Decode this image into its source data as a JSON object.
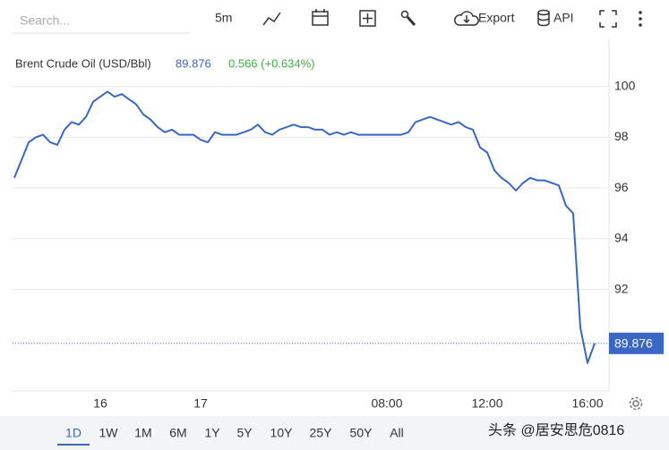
{
  "toolbar": {
    "search_placeholder": "Search...",
    "interval": "5m",
    "export": "Export",
    "api": "API"
  },
  "range_buttons": [
    "1D",
    "1W",
    "1M",
    "6M",
    "1Y",
    "5Y",
    "10Y",
    "25Y",
    "50Y",
    "All"
  ],
  "active_range_index": 0,
  "watermark": "头条 @居安思危0816",
  "chart_data": {
    "type": "line",
    "title": "Brent Crude Oil (USD/Bbl)",
    "last_price": 89.876,
    "change": "0.566 (+0.634%)",
    "categories": [
      null,
      null,
      null,
      null,
      null,
      null,
      null,
      null,
      null,
      null,
      null,
      null,
      "16",
      null,
      null,
      null,
      null,
      null,
      null,
      null,
      null,
      null,
      null,
      null,
      null,
      null,
      "17",
      null,
      null,
      null,
      null,
      null,
      null,
      null,
      null,
      null,
      null,
      null,
      null,
      null,
      null,
      null,
      null,
      null,
      null,
      null,
      null,
      null,
      null,
      null,
      null,
      null,
      "08:00",
      null,
      null,
      null,
      null,
      null,
      null,
      null,
      null,
      null,
      null,
      null,
      null,
      null,
      "12:00",
      null,
      null,
      null,
      null,
      null,
      null,
      null,
      null,
      null,
      null,
      null,
      null,
      null,
      "16:00",
      null
    ],
    "series": [
      {
        "name": "Brent Crude Oil",
        "color": "#3a67c4",
        "values": [
          96.4,
          97.1,
          97.8,
          98.0,
          98.1,
          97.8,
          97.7,
          98.3,
          98.6,
          98.5,
          98.8,
          99.4,
          99.6,
          99.8,
          99.6,
          99.7,
          99.5,
          99.3,
          98.9,
          98.7,
          98.4,
          98.2,
          98.3,
          98.1,
          98.1,
          98.1,
          97.9,
          97.8,
          98.2,
          98.1,
          98.1,
          98.1,
          98.2,
          98.3,
          98.5,
          98.2,
          98.1,
          98.3,
          98.4,
          98.5,
          98.4,
          98.4,
          98.3,
          98.3,
          98.1,
          98.2,
          98.1,
          98.2,
          98.1,
          98.1,
          98.1,
          98.1,
          98.1,
          98.1,
          98.1,
          98.2,
          98.6,
          98.7,
          98.8,
          98.7,
          98.6,
          98.5,
          98.6,
          98.4,
          98.3,
          97.6,
          97.4,
          96.7,
          96.4,
          96.2,
          95.9,
          96.2,
          96.4,
          96.3,
          96.3,
          96.2,
          96.1,
          95.3,
          95.0,
          90.5,
          89.1,
          89.876
        ]
      }
    ],
    "ylim": [
      88,
      102
    ],
    "yticks": [
      92,
      94,
      96,
      98,
      100
    ],
    "grid": true,
    "title_color": "#3a67c4",
    "change_color": "#3cb33c"
  }
}
